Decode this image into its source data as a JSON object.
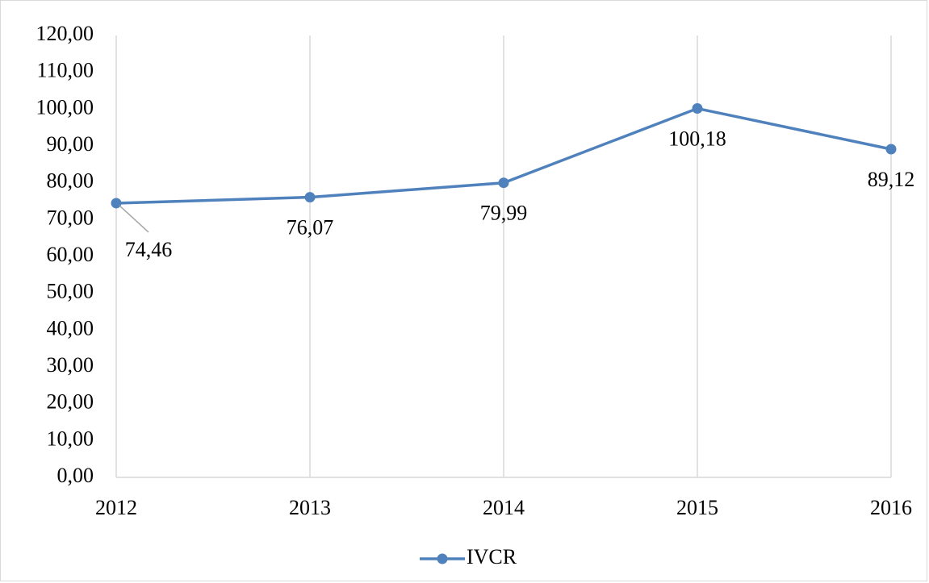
{
  "chart_data": {
    "type": "line",
    "categories": [
      "2012",
      "2013",
      "2014",
      "2015",
      "2016"
    ],
    "series": [
      {
        "name": "IVCR",
        "color": "#4f81bd",
        "values": [
          74.46,
          76.07,
          79.99,
          100.18,
          89.12
        ],
        "value_labels": [
          "74,46",
          "76,07",
          "79,99",
          "100,18",
          "89,12"
        ]
      }
    ],
    "ylim": [
      0,
      120
    ],
    "yticks": [
      {
        "value": 0,
        "label": "0,00"
      },
      {
        "value": 10,
        "label": "10,00"
      },
      {
        "value": 20,
        "label": "20,00"
      },
      {
        "value": 30,
        "label": "30,00"
      },
      {
        "value": 40,
        "label": "40,00"
      },
      {
        "value": 50,
        "label": "50,00"
      },
      {
        "value": 60,
        "label": "60,00"
      },
      {
        "value": 70,
        "label": "70,00"
      },
      {
        "value": 80,
        "label": "80,00"
      },
      {
        "value": 90,
        "label": "90,00"
      },
      {
        "value": 100,
        "label": "100,00"
      },
      {
        "value": 110,
        "label": "110,00"
      },
      {
        "value": 120,
        "label": "120,00"
      }
    ],
    "grid": true,
    "legend": "bottom"
  }
}
